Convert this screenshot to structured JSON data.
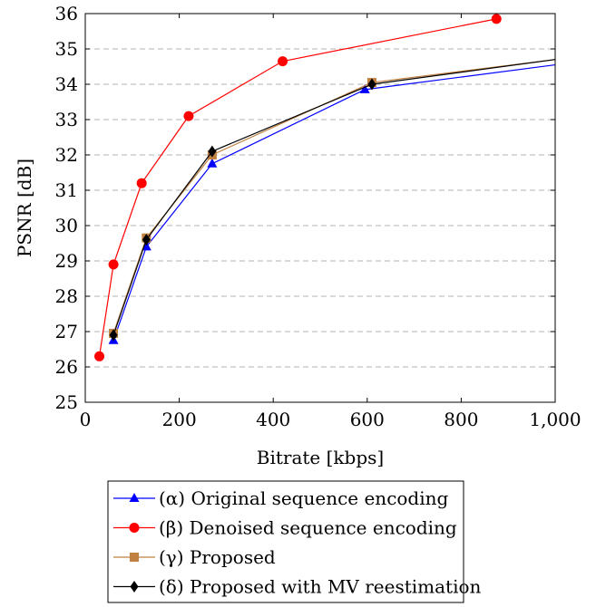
{
  "chart_data": {
    "type": "line",
    "xlabel": "Bitrate [kbps]",
    "ylabel": "PSNR [dB]",
    "xlim": [
      0,
      1000
    ],
    "ylim": [
      25,
      36
    ],
    "x_ticks": [
      0,
      200,
      400,
      600,
      800,
      1000
    ],
    "x_tick_labels": [
      "0",
      "200",
      "400",
      "600",
      "800",
      "1,000"
    ],
    "y_ticks": [
      25,
      26,
      27,
      28,
      29,
      30,
      31,
      32,
      33,
      34,
      35,
      36
    ],
    "y_tick_labels": [
      "25",
      "26",
      "27",
      "28",
      "29",
      "30",
      "31",
      "32",
      "33",
      "34",
      "35",
      "36"
    ],
    "grid": "horizontal dashed",
    "legend_position": "below",
    "series": [
      {
        "name": "(α) Original sequence encoding",
        "color": "#0000ff",
        "marker": "triangle",
        "x": [
          60,
          130,
          270,
          595,
          1000
        ],
        "y": [
          26.75,
          29.4,
          31.75,
          33.85,
          34.55
        ]
      },
      {
        "name": "(β) Denoised sequence encoding",
        "color": "#ff0000",
        "marker": "circle",
        "x": [
          30,
          60,
          120,
          220,
          420,
          875
        ],
        "y": [
          26.3,
          28.9,
          31.2,
          33.1,
          34.65,
          35.85
        ]
      },
      {
        "name": "(γ) Proposed",
        "color": "#bf8040",
        "marker": "square",
        "x": [
          60,
          130,
          270,
          610,
          1000
        ],
        "y": [
          26.95,
          29.65,
          32.0,
          34.05,
          34.7
        ]
      },
      {
        "name": "(δ) Proposed with MV reestimation",
        "color": "#000000",
        "marker": "diamond",
        "x": [
          60,
          130,
          270,
          610,
          1000
        ],
        "y": [
          26.9,
          29.6,
          32.1,
          34.0,
          34.7
        ]
      }
    ]
  }
}
